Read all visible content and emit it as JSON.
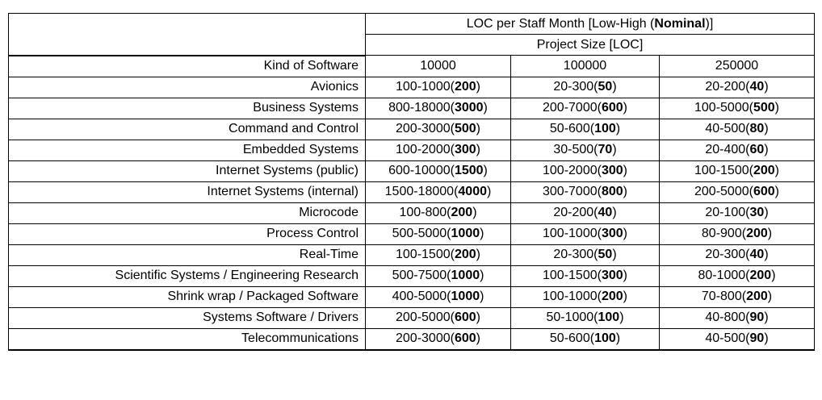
{
  "table": {
    "title": {
      "prefix": "LOC per Staff Month [Low-High (",
      "bold": "Nominal",
      "suffix": ")]"
    },
    "subtitle": "Project Size [LOC]",
    "kind_header": "Kind of Software",
    "size_headers": [
      "10000",
      "100000",
      "250000"
    ],
    "rows": [
      {
        "kind": "Avionics",
        "cells": [
          "100-1000(200)",
          "20-300(50)",
          "20-200(40)"
        ]
      },
      {
        "kind": "Business Systems",
        "cells": [
          "800-18000(3000)",
          "200-7000(600)",
          "100-5000(500)"
        ]
      },
      {
        "kind": "Command and Control",
        "cells": [
          "200-3000(500)",
          "50-600(100)",
          "40-500(80)"
        ]
      },
      {
        "kind": "Embedded Systems",
        "cells": [
          "100-2000(300)",
          "30-500(70)",
          "20-400(60)"
        ]
      },
      {
        "kind": "Internet Systems (public)",
        "cells": [
          "600-10000(1500)",
          "100-2000(300)",
          "100-1500(200)"
        ]
      },
      {
        "kind": "Internet Systems (internal)",
        "cells": [
          "1500-18000(4000)",
          "300-7000(800)",
          "200-5000(600)"
        ]
      },
      {
        "kind": "Microcode",
        "cells": [
          "100-800(200)",
          "20-200(40)",
          "20-100(30)"
        ]
      },
      {
        "kind": "Process Control",
        "cells": [
          "500-5000(1000)",
          "100-1000(300)",
          "80-900(200)"
        ]
      },
      {
        "kind": "Real-Time",
        "cells": [
          "100-1500(200)",
          "20-300(50)",
          "20-300(40)"
        ]
      },
      {
        "kind": "Scientific Systems / Engineering Research",
        "cells": [
          "500-7500(1000)",
          "100-1500(300)",
          "80-1000(200)"
        ]
      },
      {
        "kind": "Shrink wrap / Packaged Software",
        "cells": [
          "400-5000(1000)",
          "100-1000(200)",
          "70-800(200)"
        ]
      },
      {
        "kind": "Systems Software / Drivers",
        "cells": [
          "200-5000(600)",
          "50-1000(100)",
          "40-800(90)"
        ]
      },
      {
        "kind": "Telecommunications",
        "cells": [
          "200-3000(600)",
          "50-600(100)",
          "40-500(90)"
        ]
      }
    ]
  }
}
